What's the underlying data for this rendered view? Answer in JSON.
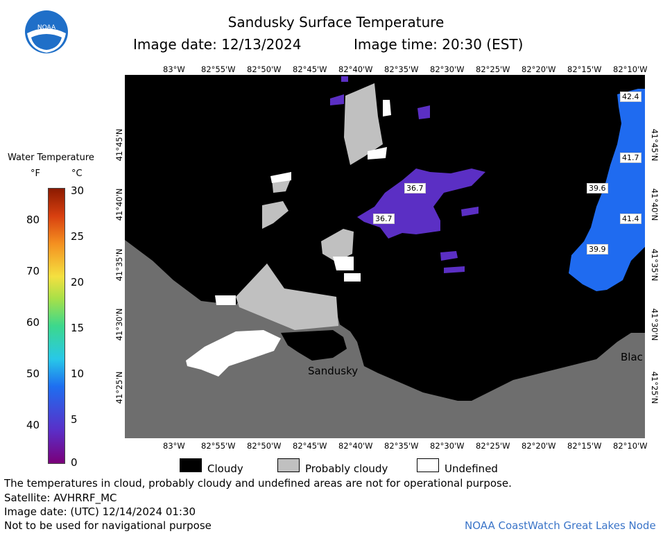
{
  "header": {
    "title": "Sandusky Surface Temperature",
    "date_label": "Image date: 12/13/2024",
    "time_label": "Image time: 20:30 (EST)"
  },
  "logo": {
    "text": "NOAA"
  },
  "colorbar": {
    "title": "Water Temperature",
    "unit_f": "°F",
    "unit_c": "°C",
    "f_ticks": [
      "80",
      "70",
      "60",
      "50",
      "40"
    ],
    "c_ticks": [
      "30",
      "25",
      "20",
      "15",
      "10",
      "5",
      "0"
    ],
    "range_c": [
      0,
      30
    ]
  },
  "map": {
    "lon_ticks": [
      "83°W",
      "82°55'W",
      "82°50'W",
      "82°45'W",
      "82°40'W",
      "82°35'W",
      "82°30'W",
      "82°25'W",
      "82°20'W",
      "82°15'W",
      "82°10'W"
    ],
    "lat_ticks": [
      "41°45'N",
      "41°40'N",
      "41°35'N",
      "41°30'N",
      "41°25'N"
    ],
    "place_labels": [
      "Sandusky",
      "Blac"
    ],
    "temperature_labels": [
      "42.4",
      "41.7",
      "39.6",
      "36.7",
      "36.7",
      "41.4",
      "39.9"
    ],
    "colors": {
      "cloudy": "#000000",
      "probably_cloudy": "#c0c0c0",
      "land": "#6e6e6e",
      "undefined": "#ffffff",
      "cold_water": "#5b2fc4",
      "warm_water": "#1f6bf0"
    }
  },
  "legend": {
    "cloudy": "Cloudy",
    "probably_cloudy": "Probably cloudy",
    "undefined": "Undefined"
  },
  "footer": {
    "disclaimer": "The temperatures in cloud, probably cloudy and undefined areas are not for operational purpose.",
    "satellite": "Satellite: AVHRRF_MC",
    "utc_date": "Image date: (UTC) 12/14/2024  01:30",
    "nav_warning": "Not to be used for navigational purpose",
    "credit": "NOAA CoastWatch Great Lakes Node"
  }
}
